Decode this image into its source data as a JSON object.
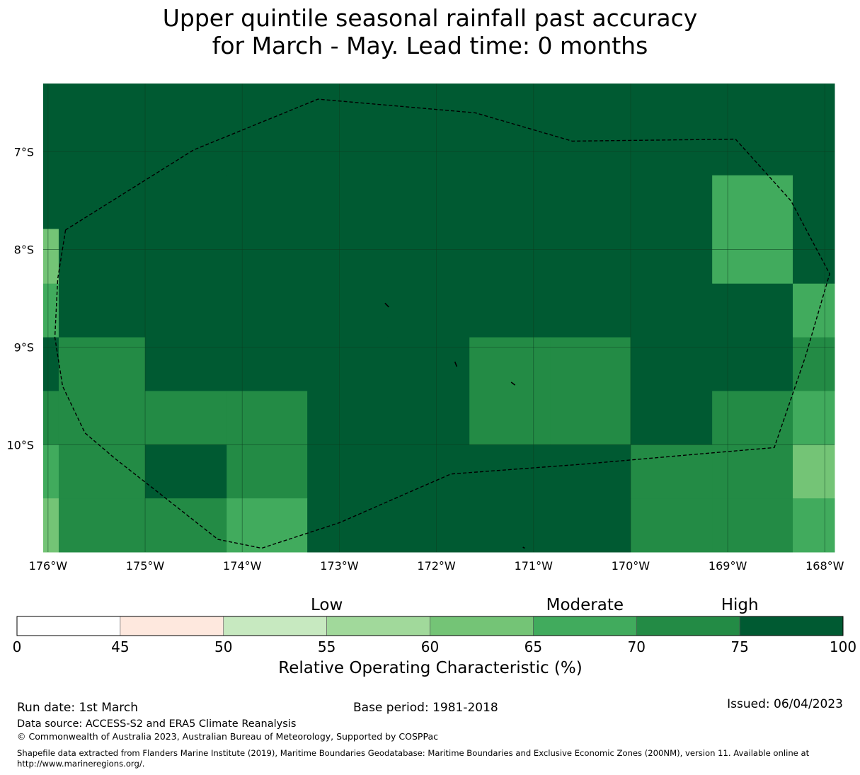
{
  "title_line1": "Upper quintile seasonal rainfall past accuracy",
  "title_line2": "for March - May. Lead time: 0 months",
  "map": {
    "lon_range": [
      -176.05,
      -167.9
    ],
    "lat_range": [
      -6.3,
      -11.1
    ],
    "lat_ticks": [
      {
        "value": -7,
        "label": "7°S"
      },
      {
        "value": -8,
        "label": "8°S"
      },
      {
        "value": -9,
        "label": "9°S"
      },
      {
        "value": -10,
        "label": "10°S"
      }
    ],
    "lon_ticks": [
      {
        "value": -176,
        "label": "176°W"
      },
      {
        "value": -175,
        "label": "175°W"
      },
      {
        "value": -174,
        "label": "174°W"
      },
      {
        "value": -173,
        "label": "173°W"
      },
      {
        "value": -172,
        "label": "172°W"
      },
      {
        "value": -171,
        "label": "171°W"
      },
      {
        "value": -170,
        "label": "170°W"
      },
      {
        "value": -169,
        "label": "169°W"
      },
      {
        "value": -168,
        "label": "168°W"
      }
    ],
    "cell_lon_edges": [
      -176.05,
      -175.89,
      -175.0,
      -174.16,
      -173.33,
      -172.5,
      -171.66,
      -170.83,
      -170.0,
      -169.16,
      -168.33,
      -167.9
    ],
    "cell_lat_edges": [
      -6.3,
      -7.24,
      -7.79,
      -8.35,
      -8.9,
      -9.45,
      -10.0,
      -10.55,
      -11.1
    ],
    "roc_grid": [
      [
        80,
        80,
        80,
        80,
        80,
        80,
        80,
        80,
        80,
        80,
        80
      ],
      [
        80,
        80,
        80,
        80,
        80,
        80,
        80,
        80,
        80,
        68,
        80
      ],
      [
        63,
        80,
        80,
        80,
        80,
        80,
        80,
        80,
        80,
        68,
        80
      ],
      [
        68,
        80,
        80,
        80,
        80,
        80,
        80,
        80,
        80,
        80,
        68
      ],
      [
        80,
        73,
        80,
        80,
        80,
        80,
        73,
        73,
        80,
        80,
        73
      ],
      [
        73,
        73,
        73,
        73,
        80,
        80,
        73,
        73,
        80,
        73,
        68
      ],
      [
        68,
        73,
        80,
        73,
        80,
        80,
        80,
        80,
        73,
        73,
        63
      ],
      [
        63,
        73,
        73,
        68,
        80,
        80,
        80,
        80,
        73,
        73,
        68
      ]
    ],
    "eez_boundary": [
      [
        -175.82,
        -7.8
      ],
      [
        -175.9,
        -8.3
      ],
      [
        -175.93,
        -8.9
      ],
      [
        -175.85,
        -9.4
      ],
      [
        -175.62,
        -9.88
      ],
      [
        -175.3,
        -10.15
      ],
      [
        -174.85,
        -10.5
      ],
      [
        -174.25,
        -10.97
      ],
      [
        -173.8,
        -11.06
      ],
      [
        -173.0,
        -10.8
      ],
      [
        -171.85,
        -10.3
      ],
      [
        -170.5,
        -10.2
      ],
      [
        -169.35,
        -10.1
      ],
      [
        -168.52,
        -10.03
      ],
      [
        -168.2,
        -9.1
      ],
      [
        -167.95,
        -8.25
      ],
      [
        -168.35,
        -7.5
      ],
      [
        -168.92,
        -6.87
      ],
      [
        -170.6,
        -6.89
      ],
      [
        -171.6,
        -6.6
      ],
      [
        -173.22,
        -6.46
      ],
      [
        -174.5,
        -6.98
      ],
      [
        -175.82,
        -7.8
      ]
    ],
    "islands": [
      [
        [
          -172.53,
          -8.55
        ],
        [
          -172.49,
          -8.59
        ]
      ],
      [
        [
          -171.81,
          -9.15
        ],
        [
          -171.79,
          -9.2
        ]
      ],
      [
        [
          -171.23,
          -9.36
        ],
        [
          -171.19,
          -9.39
        ]
      ],
      [
        [
          -171.11,
          -11.05
        ],
        [
          -171.09,
          -11.06
        ]
      ]
    ]
  },
  "colorbar": {
    "bounds": [
      0,
      45,
      50,
      55,
      60,
      65,
      70,
      75,
      100
    ],
    "colors": [
      "#ffffff",
      "#fee8de",
      "#c7e9c0",
      "#a1d99b",
      "#74c476",
      "#41ab5d",
      "#238b45",
      "#005a32"
    ],
    "tick_labels": [
      "0",
      "45",
      "50",
      "55",
      "60",
      "65",
      "70",
      "75",
      "100"
    ],
    "category_labels": [
      {
        "label": "Low",
        "value": 55
      },
      {
        "label": "Moderate",
        "value": 67.5
      },
      {
        "label": "High",
        "value": 75
      }
    ],
    "title": "Relative Operating Characteristic (%)"
  },
  "footer": {
    "run_date": "Run date: 1st March",
    "base_period": "Base period: 1981-2018",
    "issued": "Issued: 06/04/2023",
    "data_source": "Data source: ACCESS-S2 and ERA5 Climate Reanalysis",
    "copyright": "© Commonwealth of Australia 2023, Australian Bureau of Meteorology, Supported by COSPPac",
    "shapefile_line1": "Shapefile data extracted from Flanders Marine Institute (2019), Maritime Boundaries Geodatabase: Maritime Boundaries and Exclusive Economic Zones (200NM), version 11. Available online at",
    "shapefile_line2": "http://www.marineregions.org/."
  }
}
